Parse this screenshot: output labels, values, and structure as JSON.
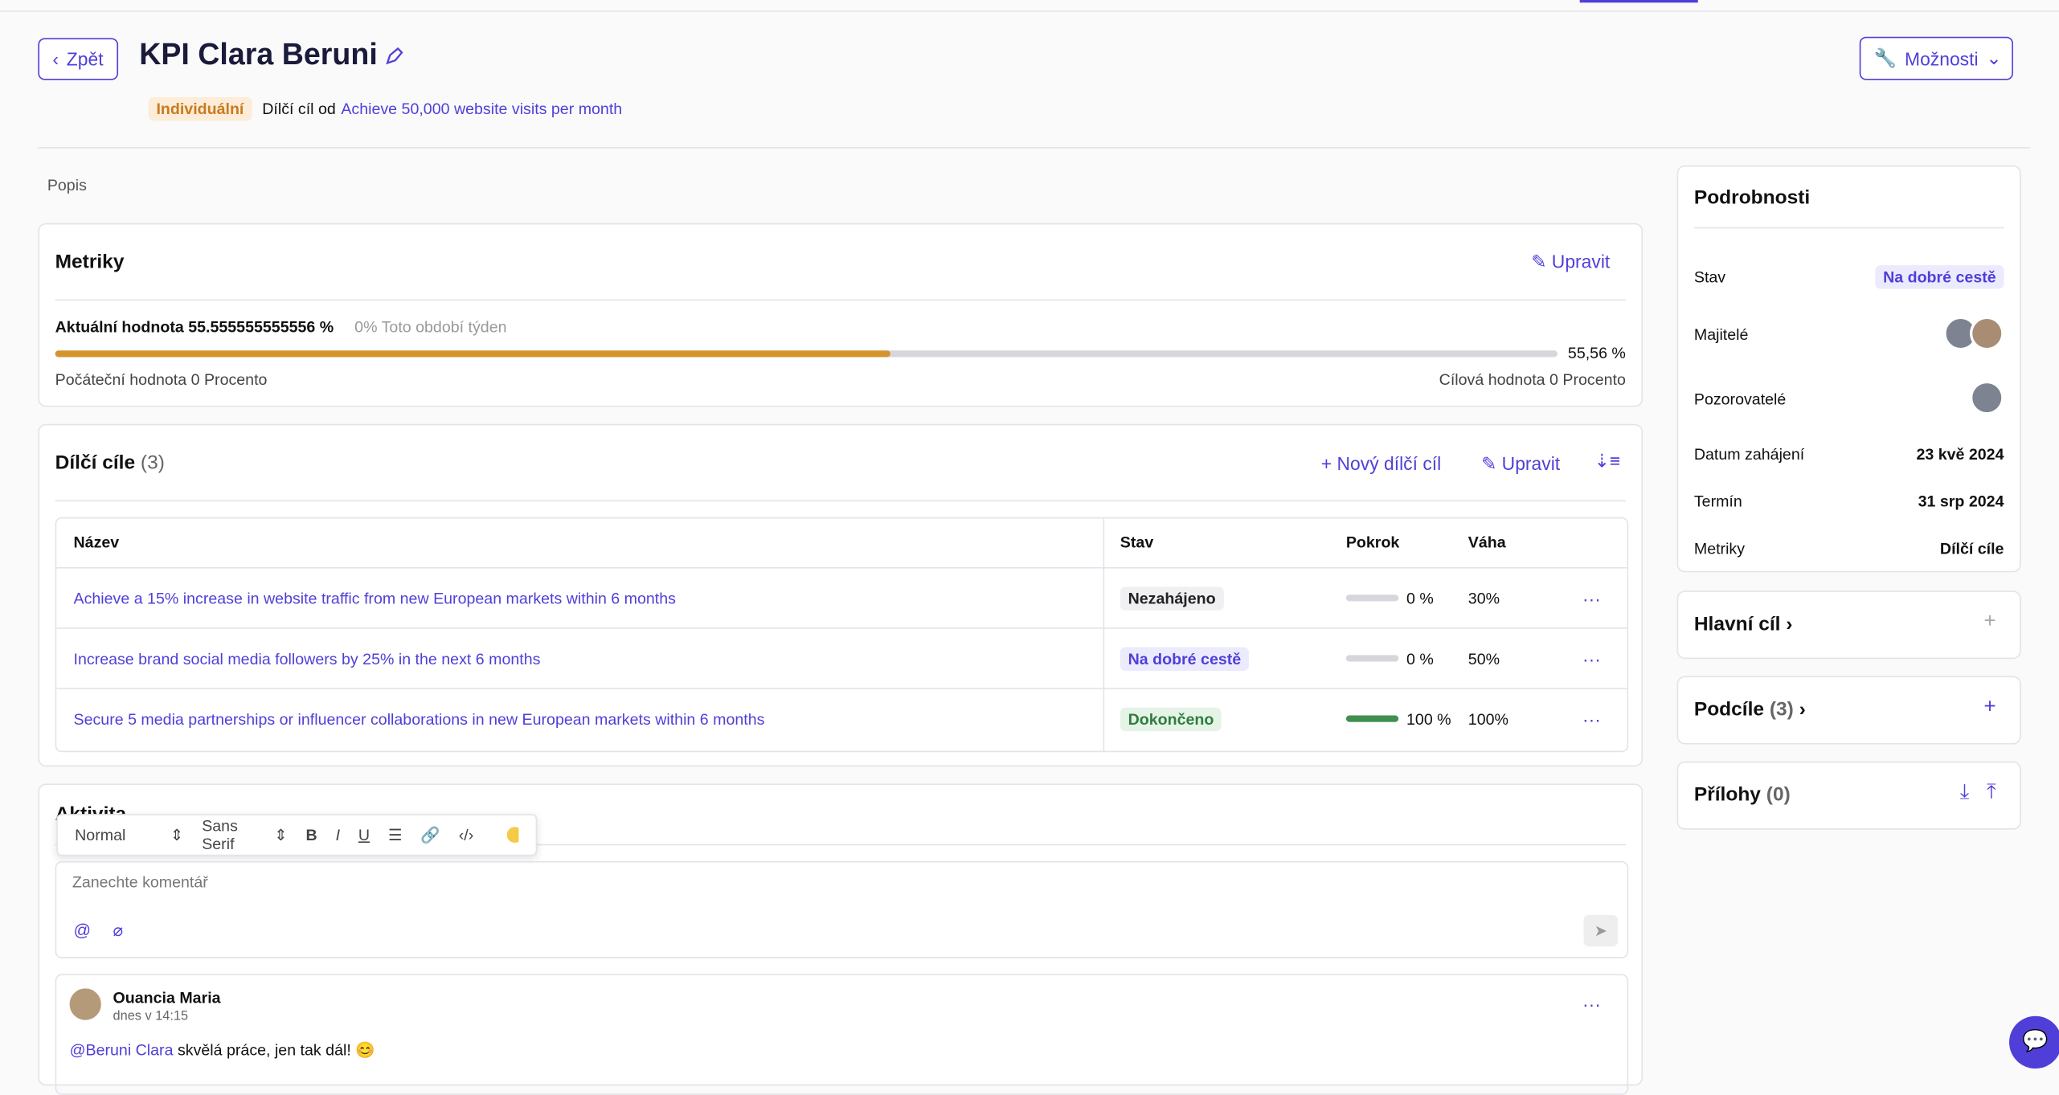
{
  "header": {
    "back": "Zpět",
    "title": "KPI Clara Beruni",
    "options": "Možnosti",
    "type_badge": "Individuální",
    "parent_prefix": "Dílčí cíl od",
    "parent_link": "Achieve 50,000 website visits per month"
  },
  "description_label": "Popis",
  "metrics": {
    "title": "Metriky",
    "edit": "Upravit",
    "current": "Aktuální hodnota 55.555555555556 %",
    "change": "0% Toto období týden",
    "progress": 55.56,
    "progress_label": "55,56 %",
    "start": "Počáteční hodnota 0 Procento",
    "target": "Cílová hodnota 0 Procento"
  },
  "subgoals": {
    "title": "Dílčí cíle",
    "count": "(3)",
    "new": "Nový dílčí cíl",
    "edit": "Upravit",
    "columns": [
      "Název",
      "Stav",
      "Pokrok",
      "Váha"
    ],
    "rows": [
      {
        "name": "Achieve a 15% increase in website traffic from new European markets within 6 months",
        "status": "Nezahájeno",
        "progress": 0,
        "progress_label": "0 %",
        "weight": "30%"
      },
      {
        "name": "Increase brand social media followers by 25% in the next 6 months",
        "status": "Na dobré cestě",
        "progress": 0,
        "progress_label": "0 %",
        "weight": "50%"
      },
      {
        "name": "Secure 5 media partnerships or influencer collaborations in new European markets within 6 months",
        "status": "Dokončeno",
        "progress": 100,
        "progress_label": "100 %",
        "weight": "100%"
      }
    ]
  },
  "activity": {
    "title": "Aktivita",
    "toolbar": [
      "Normal",
      "Sans Serif"
    ],
    "placeholder": "Zanechte komentář",
    "comment": {
      "author": "Ouancia Maria",
      "time": "dnes v 14:15",
      "mention": "@Beruni Clara",
      "text": "skvělá práce, jen tak dál! 😊"
    }
  },
  "details": {
    "title": "Podrobnosti",
    "rows": [
      {
        "label": "Stav",
        "value": "Na dobré cestě"
      },
      {
        "label": "Majitelé"
      },
      {
        "label": "Pozorovatelé"
      },
      {
        "label": "Datum zahájení",
        "value": "23 kvě 2024"
      },
      {
        "label": "Termín",
        "value": "31 srp 2024"
      },
      {
        "label": "Metriky",
        "value": "Dílčí cíle"
      }
    ]
  },
  "panels": [
    {
      "title": "Hlavní cíl"
    },
    {
      "title": "Podcíle",
      "count": "(3)"
    },
    {
      "title": "Přílohy",
      "count": "(0)"
    }
  ]
}
